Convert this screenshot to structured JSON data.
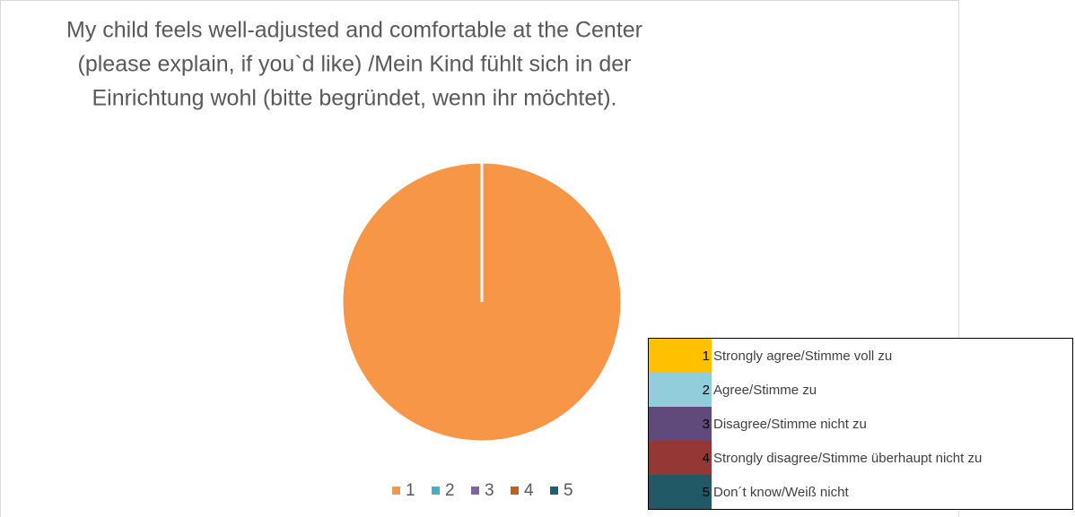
{
  "chart_data": {
    "type": "pie",
    "title": [
      "My child feels well-adjusted and comfortable at the Center",
      "(please explain, if you`d like) /Mein Kind fühlt sich in der",
      "Einrichtung wohl (bitte begründet, wenn ihr möchtet)."
    ],
    "categories": [
      "1",
      "2",
      "3",
      "4",
      "5"
    ],
    "values": [
      100,
      0,
      0,
      0,
      0
    ],
    "colors": [
      "#f79646",
      "#4bacc6",
      "#8064a2",
      "#c0601c",
      "#1f5f6e"
    ],
    "legend": "bottom"
  },
  "key": {
    "rows": [
      {
        "number": "1",
        "text": "Strongly agree/Stimme voll zu",
        "color": "#ffc000"
      },
      {
        "number": "2",
        "text": "Agree/Stimme zu",
        "color": "#92cddc"
      },
      {
        "number": "3",
        "text": "Disagree/Stimme nicht zu",
        "color": "#604a7b"
      },
      {
        "number": "4",
        "text": "Strongly disagree/Stimme überhaupt nicht zu",
        "color": "#953735"
      },
      {
        "number": "5",
        "text": "Don´t know/Weiß nicht",
        "color": "#215967"
      }
    ]
  }
}
